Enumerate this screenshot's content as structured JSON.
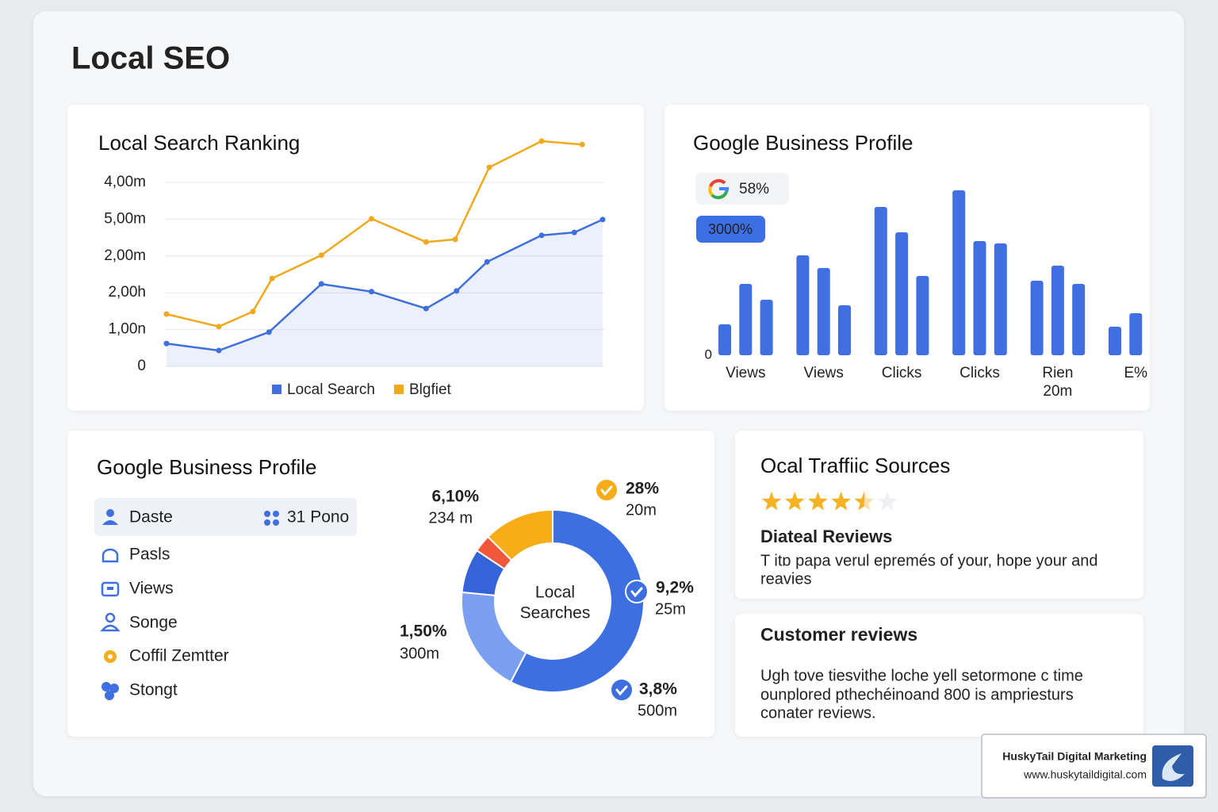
{
  "header": {
    "title": "Local SEO"
  },
  "chart_data": [
    {
      "type": "line",
      "title": "Local Search Ranking",
      "xlim": [
        0,
        10
      ],
      "ylim": [
        0,
        6.2
      ],
      "yticks": [
        0,
        {
          "value": 1,
          "label": "1,00n"
        },
        {
          "value": 2,
          "label": "2,00h"
        },
        {
          "value": 3,
          "label": "2,00m"
        },
        {
          "value": 4,
          "label": "5,00m"
        },
        {
          "value": 5,
          "label": "4,00m"
        }
      ],
      "grid": true,
      "series": [
        {
          "name": "Local Search",
          "color": "#3f6fdc",
          "area": true,
          "x": [
            0,
            1.2,
            2.35,
            3.55,
            4.7,
            5.95,
            6.65,
            7.35,
            8.6,
            9.35,
            10
          ],
          "values": [
            0.62,
            0.43,
            0.93,
            2.24,
            2.03,
            1.57,
            2.05,
            2.84,
            3.56,
            3.64,
            3.99
          ]
        },
        {
          "name": "Blgfiet",
          "color": "#f0a91c",
          "area": false,
          "x": [
            0,
            1.2,
            1.98,
            2.42,
            3.55,
            4.7,
            5.95,
            6.62,
            7.4,
            8.6,
            9.53
          ],
          "values": [
            1.42,
            1.08,
            1.49,
            2.39,
            3.02,
            4.01,
            3.38,
            3.45,
            5.41,
            6.12,
            6.03
          ]
        }
      ]
    },
    {
      "type": "bar",
      "title": "Google Business Profile",
      "annotations": [
        "58%",
        "3000%"
      ],
      "categories": [
        "Views",
        "Views",
        "Clicks",
        "Clicks",
        "Rien",
        "E%"
      ],
      "category_sublabels": [
        null,
        null,
        null,
        null,
        "20m",
        null
      ],
      "color": "#3f6fe0",
      "ylim": [
        0,
        220
      ],
      "yticks": [
        0
      ],
      "series": [
        {
          "values": [
            39,
            126,
            187,
            208,
            94,
            36
          ]
        },
        {
          "values": [
            90,
            110,
            155,
            144,
            113,
            53
          ]
        },
        {
          "values": [
            70,
            63,
            100,
            141,
            90,
            null
          ]
        }
      ]
    },
    {
      "type": "pie",
      "center_label": [
        "Local",
        "Searches"
      ],
      "values": [
        28,
        9.2,
        3.8,
        1.5,
        6.1
      ],
      "value_labels": [
        "28%",
        "9,2%",
        "3,8%",
        "1,50%",
        "6,10%"
      ],
      "sublabels": [
        "20m",
        "25m",
        "500m",
        "300m",
        "234 m"
      ],
      "colors": [
        "#3e6fe0",
        "#7a9ef0",
        "#3563d8",
        "#f0573b",
        "#f6ad17"
      ]
    }
  ],
  "profile_list": {
    "title": "Google Business Profile",
    "items": [
      {
        "label": "Daste",
        "extra": "31 Pono"
      },
      {
        "label": "Pasls"
      },
      {
        "label": "Views"
      },
      {
        "label": "Songe"
      },
      {
        "label": "Coffil Zemtter"
      },
      {
        "label": "Stongt"
      }
    ]
  },
  "traffic": {
    "title": "Ocal Traffiic Sources",
    "rating": 4.5,
    "subtitle": "Diateal Reviews",
    "text": [
      "T itɒ papa verul epremés of your, hope your and",
      "reavies"
    ]
  },
  "reviews": {
    "title": "Customer reviews",
    "text": [
      "Ugh tove tiesvithe loche yell setormone c time",
      "ounplored pthechéinoand 800 is ampriesturs",
      "conater reviews."
    ]
  },
  "watermark": {
    "name": "HuskyTail Digital Marketing",
    "url": "www.huskytaildigital.com"
  }
}
